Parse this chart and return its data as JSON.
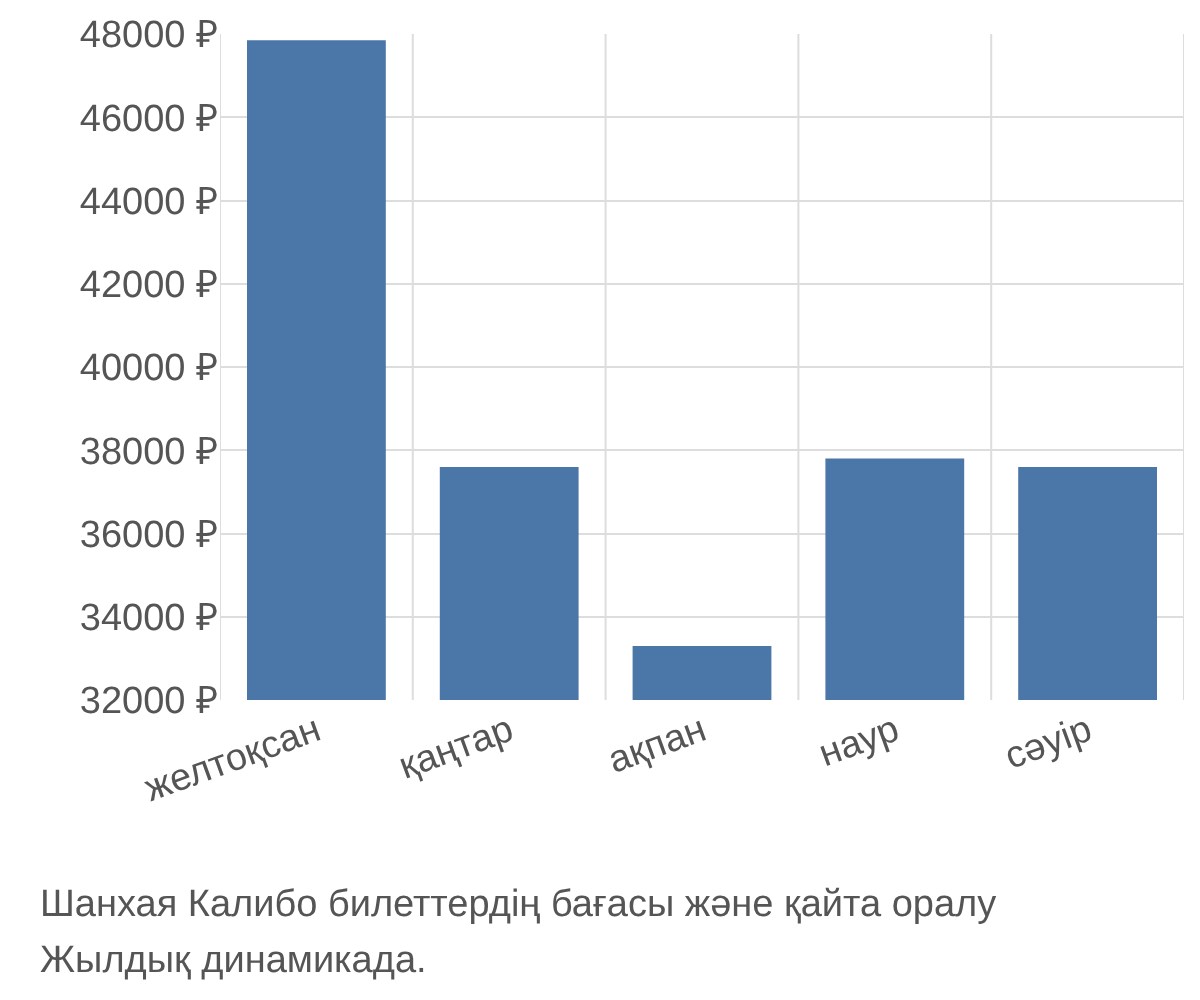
{
  "chart_data": {
    "type": "bar",
    "categories": [
      "желтоқсан",
      "қаңтар",
      "ақпан",
      "наур",
      "сәуір"
    ],
    "values": [
      47850,
      37600,
      33300,
      37800,
      37600
    ],
    "color": "#4a76a8",
    "ylim": [
      32000,
      48000
    ],
    "yticks": [
      {
        "value": 32000,
        "label": "32000 ₽"
      },
      {
        "value": 34000,
        "label": "34000 ₽"
      },
      {
        "value": 36000,
        "label": "36000 ₽"
      },
      {
        "value": 38000,
        "label": "38000 ₽"
      },
      {
        "value": 40000,
        "label": "40000 ₽"
      },
      {
        "value": 42000,
        "label": "42000 ₽"
      },
      {
        "value": 44000,
        "label": "44000 ₽"
      },
      {
        "value": 46000,
        "label": "46000 ₽"
      },
      {
        "value": 48000,
        "label": "48000 ₽"
      }
    ],
    "grid": true,
    "annotations": [
      "Шанхая Калибо билеттердің бағасы және қайта оралу",
      "Жылдық динамикада."
    ]
  }
}
